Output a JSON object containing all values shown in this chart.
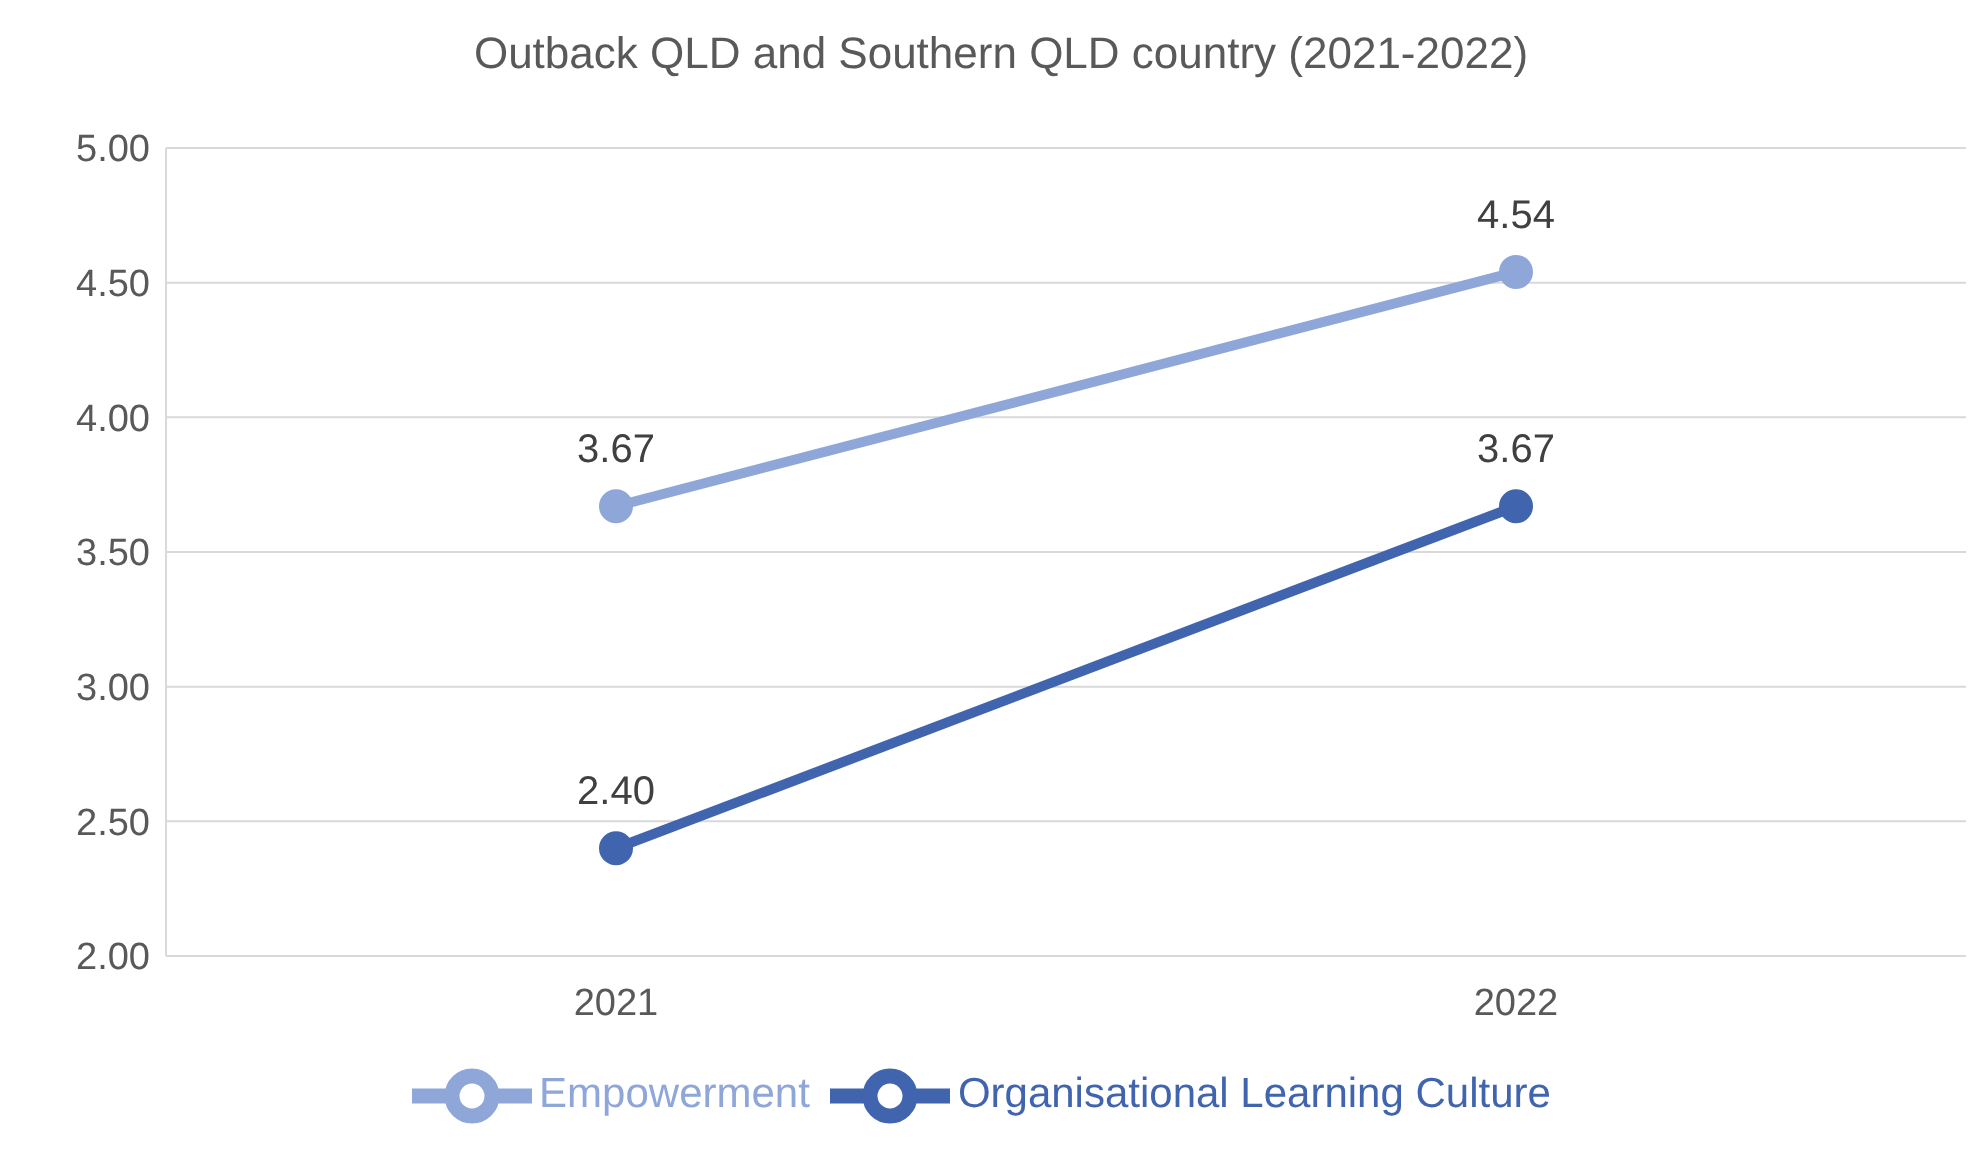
{
  "chart_data": {
    "type": "line",
    "title": "Outback QLD and Southern QLD country (2021-2022)",
    "categories": [
      "2021",
      "2022"
    ],
    "series": [
      {
        "name": "Organisational Learning Culture",
        "color": "#4065ae",
        "values": [
          2.4,
          3.67
        ],
        "value_labels": [
          "2.40",
          "3.67"
        ]
      },
      {
        "name": "Empowerment",
        "color": "#8fa6d9",
        "values": [
          3.67,
          4.54
        ],
        "value_labels": [
          "3.67",
          "4.54"
        ]
      }
    ],
    "ylim": [
      2,
      5
    ],
    "yticks": [
      {
        "value": 2,
        "label": "2.00"
      },
      {
        "value": 2.5,
        "label": "2.50"
      },
      {
        "value": 3,
        "label": "3.00"
      },
      {
        "value": 3.5,
        "label": "3.50"
      },
      {
        "value": 4,
        "label": "4.00"
      },
      {
        "value": 4.5,
        "label": "4.50"
      },
      {
        "value": 5,
        "label": "5.00"
      }
    ],
    "grid": "y",
    "legend": "bottom",
    "marker": "circle",
    "line_style": "solid"
  }
}
